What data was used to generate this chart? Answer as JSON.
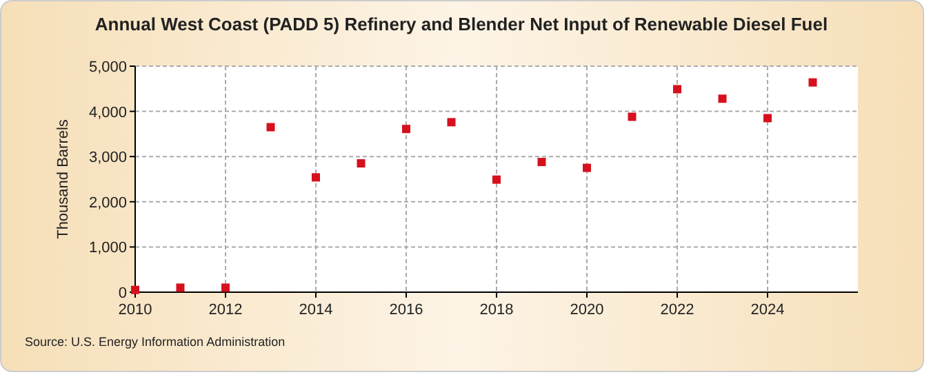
{
  "chart_data": {
    "type": "scatter",
    "title": "Annual West Coast (PADD 5) Refinery and Blender Net Input of Renewable Diesel Fuel",
    "ylabel": "Thousand Barrels",
    "annotations": [
      "Source: U.S. Energy Information Administration"
    ],
    "x": [
      2010,
      2011,
      2012,
      2013,
      2014,
      2015,
      2016,
      2017,
      2018,
      2019,
      2020,
      2021,
      2022,
      2023,
      2024,
      2025
    ],
    "series": [
      {
        "color": "#d7101e",
        "values": [
          50,
          100,
          100,
          3650,
          2540,
          2850,
          3610,
          3760,
          2490,
          2880,
          2750,
          3880,
          4490,
          4280,
          3850,
          4640
        ]
      }
    ],
    "xlim": [
      2010,
      2026
    ],
    "xticks": [
      2010,
      2012,
      2014,
      2016,
      2018,
      2020,
      2022,
      2024
    ],
    "ylim": [
      0,
      5000
    ],
    "yticks": [
      {
        "value": 0,
        "label": "0"
      },
      {
        "value": 1000,
        "label": "1,000"
      },
      {
        "value": 2000,
        "label": "2,000"
      },
      {
        "value": 3000,
        "label": "3,000"
      },
      {
        "value": 4000,
        "label": "4,000"
      },
      {
        "value": 5000,
        "label": "5,000"
      }
    ],
    "grid": true,
    "marker": "square"
  }
}
